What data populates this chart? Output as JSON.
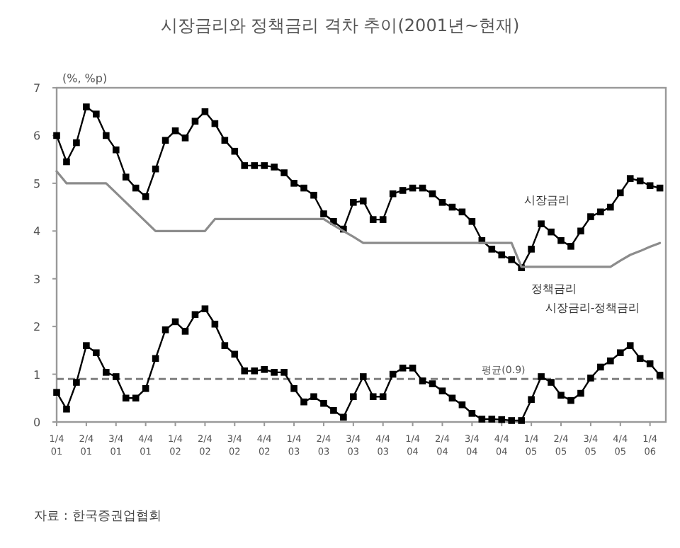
{
  "chart_data": {
    "type": "line",
    "title": "시장금리와 정책금리 격차 추이(2001년~현재)",
    "ylabel": "(%, %p)",
    "categories": [
      "1/4\n01",
      null,
      null,
      "2/4\n01",
      null,
      null,
      "3/4\n01",
      null,
      null,
      "4/4\n01",
      null,
      null,
      "1/4\n02",
      null,
      null,
      "2/4\n02",
      null,
      null,
      "3/4\n02",
      null,
      null,
      "4/4\n02",
      null,
      null,
      "1/4\n03",
      null,
      null,
      "2/4\n03",
      null,
      null,
      "3/4\n03",
      null,
      null,
      "4/4\n03",
      null,
      null,
      "1/4\n04",
      null,
      null,
      "2/4\n04",
      null,
      null,
      "3/4\n04",
      null,
      null,
      "4/4\n04",
      null,
      null,
      "1/4\n05",
      null,
      null,
      "2/4\n05",
      null,
      null,
      "3/4\n05",
      null,
      null,
      "4/4\n05",
      null,
      null,
      "1/4\n06",
      null
    ],
    "ylim": [
      0,
      7
    ],
    "yticks": [
      0,
      1,
      2,
      3,
      4,
      5,
      6,
      7
    ],
    "grid": false,
    "series": [
      {
        "name": "시장금리",
        "color": "#000000",
        "marker": "square",
        "values": [
          6.0,
          5.45,
          5.85,
          6.6,
          6.45,
          6.0,
          5.7,
          5.13,
          4.9,
          4.72,
          5.3,
          5.9,
          6.1,
          5.95,
          6.3,
          6.5,
          6.25,
          5.9,
          5.67,
          5.37,
          5.37,
          5.37,
          5.34,
          5.22,
          5.0,
          4.9,
          4.75,
          4.36,
          4.2,
          4.04,
          4.6,
          4.63,
          4.24,
          4.24,
          4.78,
          4.85,
          4.9,
          4.9,
          4.78,
          4.6,
          4.5,
          4.4,
          4.2,
          3.8,
          3.62,
          3.5,
          3.4,
          3.23,
          3.62,
          4.15,
          3.98,
          3.8,
          3.68,
          4.0,
          4.3,
          4.4,
          4.5,
          4.8,
          5.1,
          5.05,
          4.95,
          4.9
        ]
      },
      {
        "name": "정책금리",
        "color": "#8c8c8c",
        "marker": "none",
        "values": [
          5.25,
          5.0,
          5.0,
          5.0,
          5.0,
          5.0,
          4.8,
          4.6,
          4.4,
          4.2,
          4.0,
          4.0,
          4.0,
          4.0,
          4.0,
          4.0,
          4.25,
          4.25,
          4.25,
          4.25,
          4.25,
          4.25,
          4.25,
          4.25,
          4.25,
          4.25,
          4.25,
          4.25,
          4.12,
          4.0,
          3.88,
          3.75,
          3.75,
          3.75,
          3.75,
          3.75,
          3.75,
          3.75,
          3.75,
          3.75,
          3.75,
          3.75,
          3.75,
          3.75,
          3.75,
          3.75,
          3.75,
          3.25,
          3.25,
          3.25,
          3.25,
          3.25,
          3.25,
          3.25,
          3.25,
          3.25,
          3.25,
          3.38,
          3.5,
          3.58,
          3.67,
          3.75
        ]
      },
      {
        "name": "시장금리-정책금리",
        "color": "#000000",
        "marker": "square",
        "values": [
          0.62,
          0.27,
          0.83,
          1.6,
          1.45,
          1.04,
          0.95,
          0.5,
          0.5,
          0.7,
          1.33,
          1.93,
          2.1,
          1.9,
          2.25,
          2.37,
          2.05,
          1.6,
          1.42,
          1.07,
          1.07,
          1.1,
          1.04,
          1.04,
          0.7,
          0.42,
          0.53,
          0.39,
          0.24,
          0.1,
          0.53,
          0.95,
          0.53,
          0.53,
          1.0,
          1.13,
          1.13,
          0.86,
          0.8,
          0.65,
          0.5,
          0.36,
          0.18,
          0.06,
          0.06,
          0.05,
          0.03,
          0.03,
          0.47,
          0.95,
          0.83,
          0.56,
          0.45,
          0.6,
          0.92,
          1.15,
          1.28,
          1.45,
          1.6,
          1.33,
          1.22,
          0.98
        ]
      }
    ],
    "ref_lines": [
      {
        "axis": "y",
        "value": 0.9,
        "label": "평균(0.9)",
        "color": "#808080",
        "line_style": "dashed"
      }
    ],
    "annotations": [
      "자료 : 한국증권업협회"
    ]
  }
}
